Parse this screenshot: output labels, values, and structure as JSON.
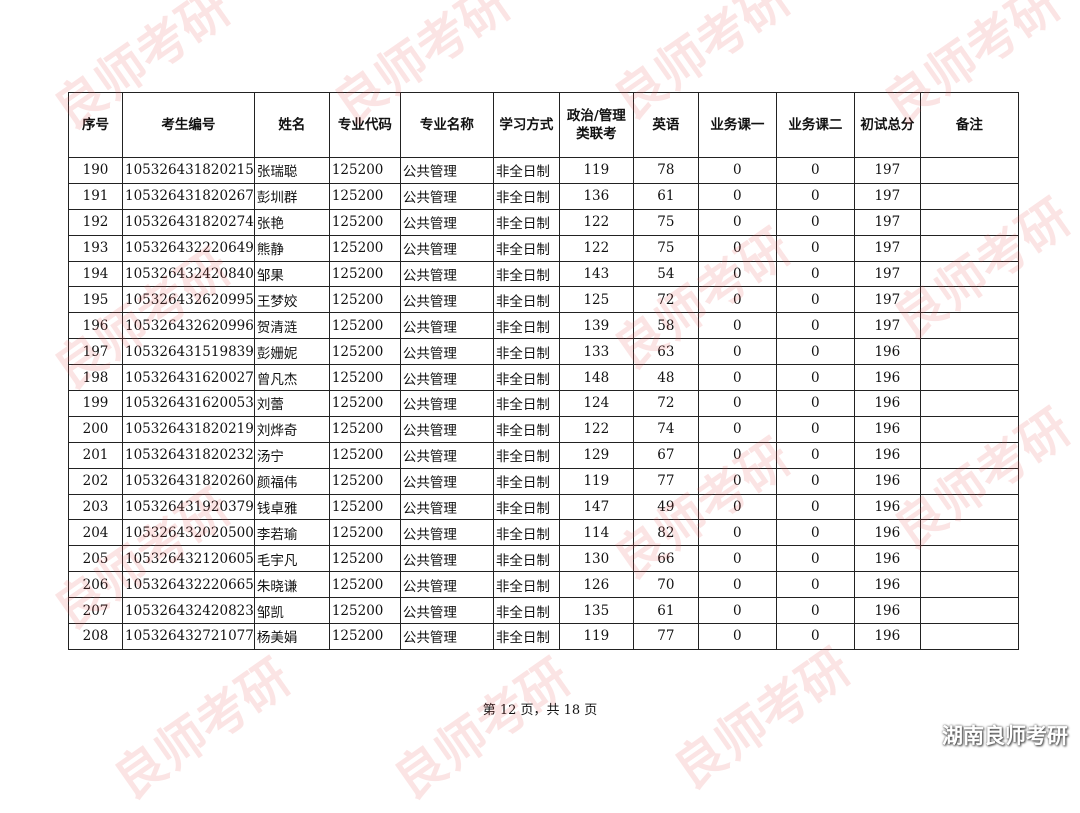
{
  "watermark": "良师考研",
  "brand": "湖南良师考研",
  "headers": [
    "序号",
    "考生编号",
    "姓名",
    "专业代码",
    "专业名称",
    "学习方式",
    "政治/管理类联考",
    "英语",
    "业务课一",
    "业务课二",
    "初试总分",
    "备注"
  ],
  "rows": [
    [
      "190",
      "105326431820215",
      "张瑞聪",
      "125200",
      "公共管理",
      "非全日制",
      "119",
      "78",
      "0",
      "0",
      "197",
      ""
    ],
    [
      "191",
      "105326431820267",
      "彭圳群",
      "125200",
      "公共管理",
      "非全日制",
      "136",
      "61",
      "0",
      "0",
      "197",
      ""
    ],
    [
      "192",
      "105326431820274",
      "张艳",
      "125200",
      "公共管理",
      "非全日制",
      "122",
      "75",
      "0",
      "0",
      "197",
      ""
    ],
    [
      "193",
      "105326432220649",
      "熊静",
      "125200",
      "公共管理",
      "非全日制",
      "122",
      "75",
      "0",
      "0",
      "197",
      ""
    ],
    [
      "194",
      "105326432420840",
      "邹果",
      "125200",
      "公共管理",
      "非全日制",
      "143",
      "54",
      "0",
      "0",
      "197",
      ""
    ],
    [
      "195",
      "105326432620995",
      "王梦姣",
      "125200",
      "公共管理",
      "非全日制",
      "125",
      "72",
      "0",
      "0",
      "197",
      ""
    ],
    [
      "196",
      "105326432620996",
      "贺清涟",
      "125200",
      "公共管理",
      "非全日制",
      "139",
      "58",
      "0",
      "0",
      "197",
      ""
    ],
    [
      "197",
      "105326431519839",
      "彭姗妮",
      "125200",
      "公共管理",
      "非全日制",
      "133",
      "63",
      "0",
      "0",
      "196",
      ""
    ],
    [
      "198",
      "105326431620027",
      "曾凡杰",
      "125200",
      "公共管理",
      "非全日制",
      "148",
      "48",
      "0",
      "0",
      "196",
      ""
    ],
    [
      "199",
      "105326431620053",
      "刘蕾",
      "125200",
      "公共管理",
      "非全日制",
      "124",
      "72",
      "0",
      "0",
      "196",
      ""
    ],
    [
      "200",
      "105326431820219",
      "刘烨奇",
      "125200",
      "公共管理",
      "非全日制",
      "122",
      "74",
      "0",
      "0",
      "196",
      ""
    ],
    [
      "201",
      "105326431820232",
      "汤宁",
      "125200",
      "公共管理",
      "非全日制",
      "129",
      "67",
      "0",
      "0",
      "196",
      ""
    ],
    [
      "202",
      "105326431820260",
      "颜福伟",
      "125200",
      "公共管理",
      "非全日制",
      "119",
      "77",
      "0",
      "0",
      "196",
      ""
    ],
    [
      "203",
      "105326431920379",
      "钱卓雅",
      "125200",
      "公共管理",
      "非全日制",
      "147",
      "49",
      "0",
      "0",
      "196",
      ""
    ],
    [
      "204",
      "105326432020500",
      "李若瑜",
      "125200",
      "公共管理",
      "非全日制",
      "114",
      "82",
      "0",
      "0",
      "196",
      ""
    ],
    [
      "205",
      "105326432120605",
      "毛宇凡",
      "125200",
      "公共管理",
      "非全日制",
      "130",
      "66",
      "0",
      "0",
      "196",
      ""
    ],
    [
      "206",
      "105326432220665",
      "朱晓谦",
      "125200",
      "公共管理",
      "非全日制",
      "126",
      "70",
      "0",
      "0",
      "196",
      ""
    ],
    [
      "207",
      "105326432420823",
      "邹凯",
      "125200",
      "公共管理",
      "非全日制",
      "135",
      "61",
      "0",
      "0",
      "196",
      ""
    ],
    [
      "208",
      "105326432721077",
      "杨美娟",
      "125200",
      "公共管理",
      "非全日制",
      "119",
      "77",
      "0",
      "0",
      "196",
      ""
    ]
  ],
  "footer": "第 12 页，共 18 页"
}
